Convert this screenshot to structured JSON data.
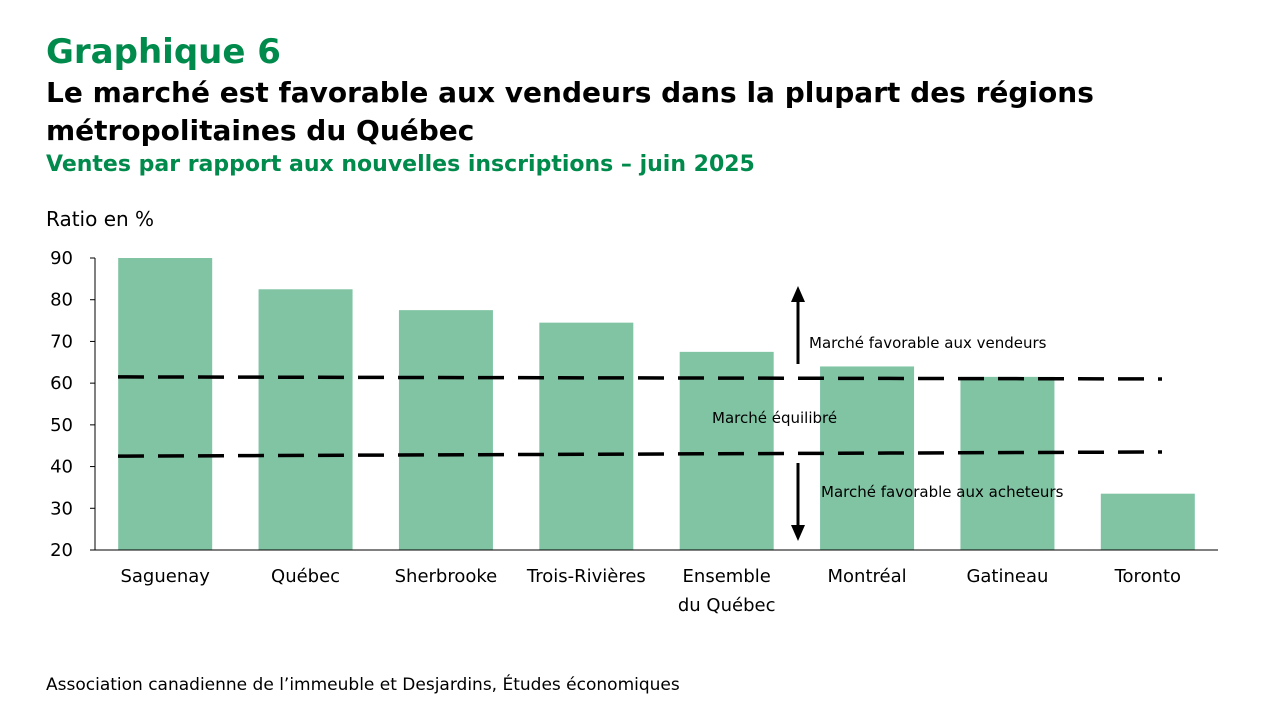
{
  "header": {
    "graph_number": "Graphique 6",
    "title_line1": "Le marché est favorable aux vendeurs dans la plupart des régions",
    "title_line2": "métropolitaines du Québec",
    "subtitle": "Ventes par rapport aux nouvelles inscriptions – juin 2025"
  },
  "source": "Association canadienne de l’immeuble et Desjardins, Études économiques",
  "colors": {
    "bar": "#80c4a4",
    "accent": "#008a4b"
  },
  "chart_data": {
    "type": "bar",
    "ylabel": "Ratio en %",
    "ylim": [
      20,
      90
    ],
    "yticks": [
      20,
      30,
      40,
      50,
      60,
      70,
      80,
      90
    ],
    "categories": [
      [
        "Saguenay"
      ],
      [
        "Québec"
      ],
      [
        "Sherbrooke"
      ],
      [
        "Trois-Rivières"
      ],
      [
        "Ensemble",
        "du Québec"
      ],
      [
        "Montréal"
      ],
      [
        "Gatineau"
      ],
      [
        "Toronto"
      ]
    ],
    "values": [
      90,
      82.5,
      77.5,
      74.5,
      67.5,
      64,
      61.5,
      33.5
    ],
    "thresholds": [
      {
        "start": 61.5,
        "end": 61
      },
      {
        "start": 42.5,
        "end": 43.5
      }
    ],
    "annotations": {
      "sellers": "Marché favorable aux vendeurs",
      "balanced": "Marché équilibré",
      "buyers": "Marché favorable aux acheteurs"
    }
  }
}
